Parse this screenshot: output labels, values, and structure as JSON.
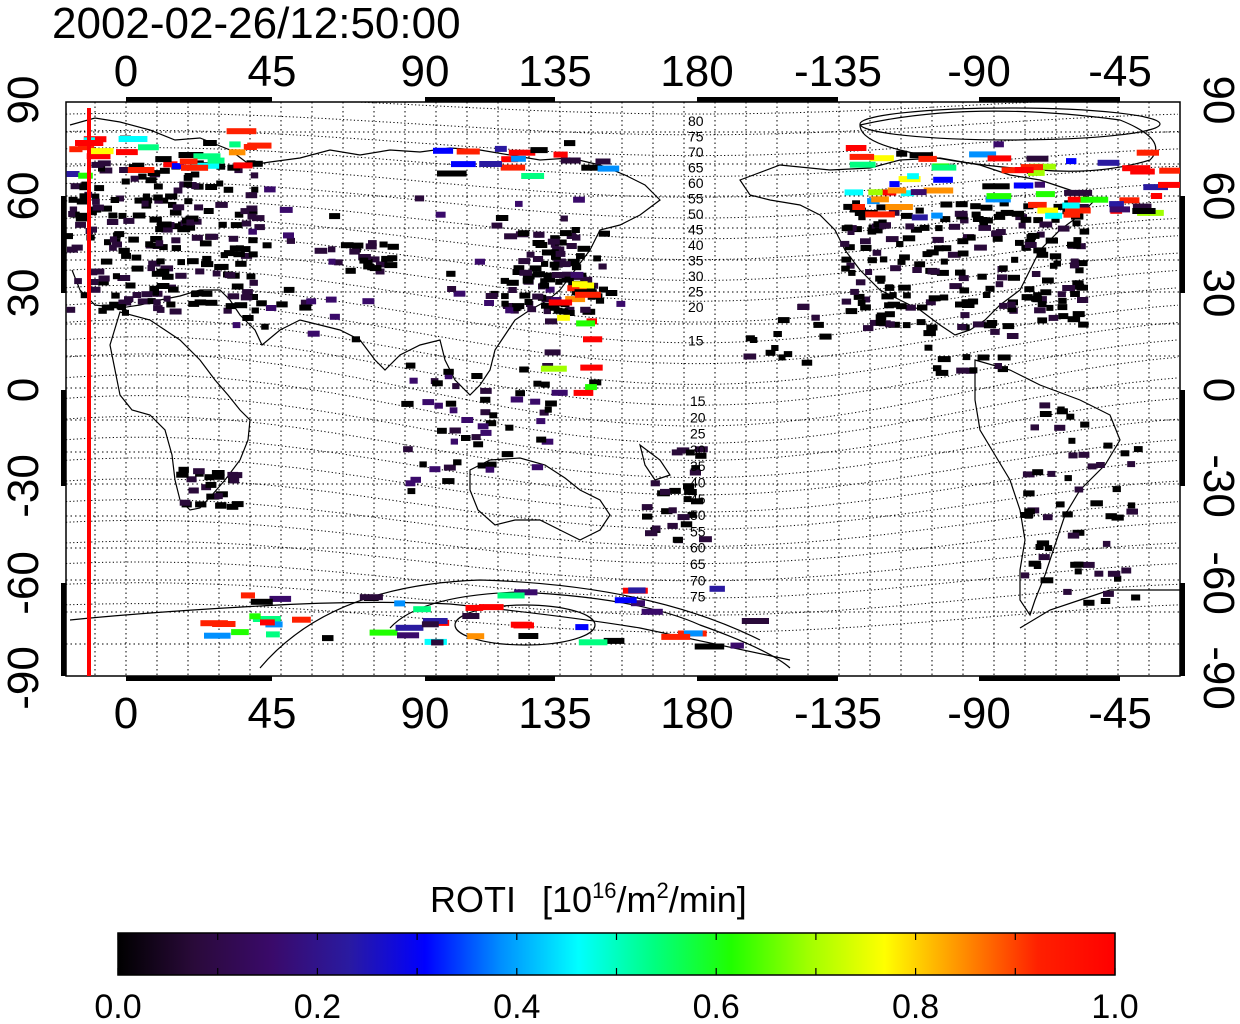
{
  "timestamp": "2002-02-26/12:50:00",
  "axes": {
    "lon_ticks_top": [
      "0",
      "45",
      "90",
      "135",
      "180",
      "-135",
      "-90",
      "-45"
    ],
    "lon_ticks_bottom": [
      "0",
      "45",
      "90",
      "135",
      "180",
      "-135",
      "-90",
      "-45"
    ],
    "lat_ticks_left": [
      "90",
      "60",
      "30",
      "0",
      "-30",
      "-60",
      "-90"
    ],
    "lat_ticks_right": [
      "90",
      "60",
      "30",
      "0",
      "-30",
      "-60",
      "-90"
    ]
  },
  "magnetic_latitude_labels_north": [
    "80",
    "75",
    "70",
    "65",
    "60",
    "55",
    "50",
    "45",
    "40",
    "35",
    "30",
    "25",
    "20",
    "15"
  ],
  "magnetic_latitude_labels_south": [
    "15",
    "20",
    "25",
    "30",
    "35",
    "40",
    "45",
    "50",
    "55",
    "60",
    "65",
    "70",
    "75"
  ],
  "colorbar": {
    "title": "ROTI",
    "unit_open": "[10",
    "unit_exp": "16",
    "unit_mid": "/m",
    "unit_exp2": "2",
    "unit_close": "/min]",
    "tick_labels": [
      "0.0",
      "0.2",
      "0.4",
      "0.6",
      "0.8",
      "1.0"
    ],
    "range": [
      0,
      1
    ],
    "colors": [
      "#000000",
      "#2a0a3a",
      "#3a0a6a",
      "#2a1aa0",
      "#0000ff",
      "#0090ff",
      "#00ffff",
      "#00ff80",
      "#20ff00",
      "#a0ff00",
      "#ffff00",
      "#ff9000",
      "#ff2000",
      "#ff0000"
    ]
  },
  "terminator_marker": {
    "color": "#ff0000"
  }
}
